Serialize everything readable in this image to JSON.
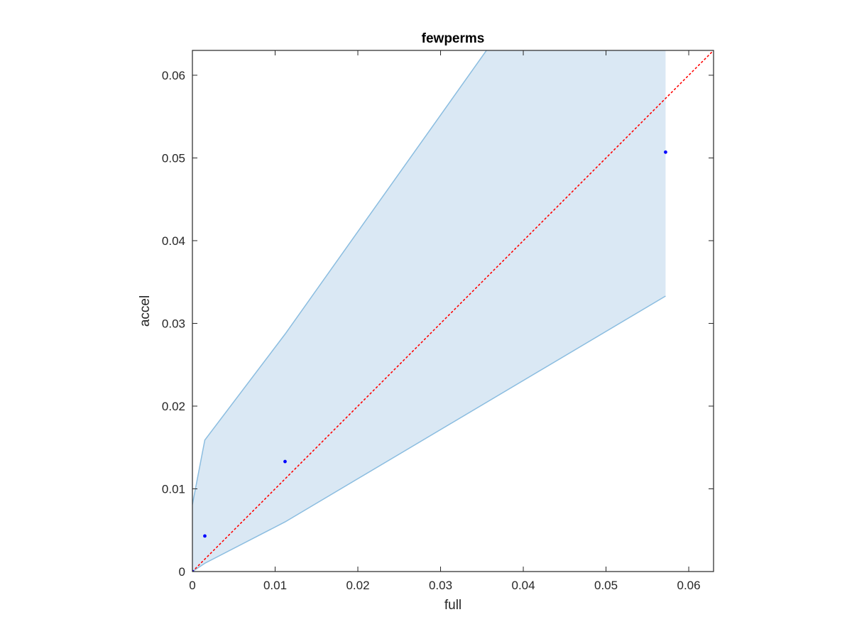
{
  "chart_data": {
    "type": "scatter",
    "title": "fewperms",
    "xlabel": "full",
    "ylabel": "accel",
    "xlim": [
      0,
      0.063
    ],
    "ylim": [
      0,
      0.063
    ],
    "xticks": [
      "0",
      "0.01",
      "0.02",
      "0.03",
      "0.04",
      "0.05",
      "0.06"
    ],
    "yticks": [
      "0",
      "0.01",
      "0.02",
      "0.03",
      "0.04",
      "0.05",
      "0.06"
    ],
    "xtick_values": [
      0,
      0.01,
      0.02,
      0.03,
      0.04,
      0.05,
      0.06
    ],
    "ytick_values": [
      0,
      0.01,
      0.02,
      0.03,
      0.04,
      0.05,
      0.06
    ],
    "grid": false,
    "points": {
      "x": [
        0,
        0.0015,
        0.0112,
        0.0572
      ],
      "y": [
        0,
        0.0043,
        0.0133,
        0.0507
      ],
      "color": "#0000ff"
    },
    "band": {
      "x": [
        0,
        0,
        0.0015,
        0.0112,
        0.0572
      ],
      "upper": [
        0.0081,
        0.0081,
        0.0159,
        0.0287,
        0.0935
      ],
      "lower": [
        0,
        0,
        0.001,
        0.006,
        0.0333
      ],
      "fill_color": "#dae8f4",
      "edge_color": "#8bbde0"
    },
    "reference_line": {
      "x": [
        0,
        0.063
      ],
      "y": [
        0,
        0.063
      ],
      "style": "dotted",
      "color": "#ff0000"
    }
  }
}
